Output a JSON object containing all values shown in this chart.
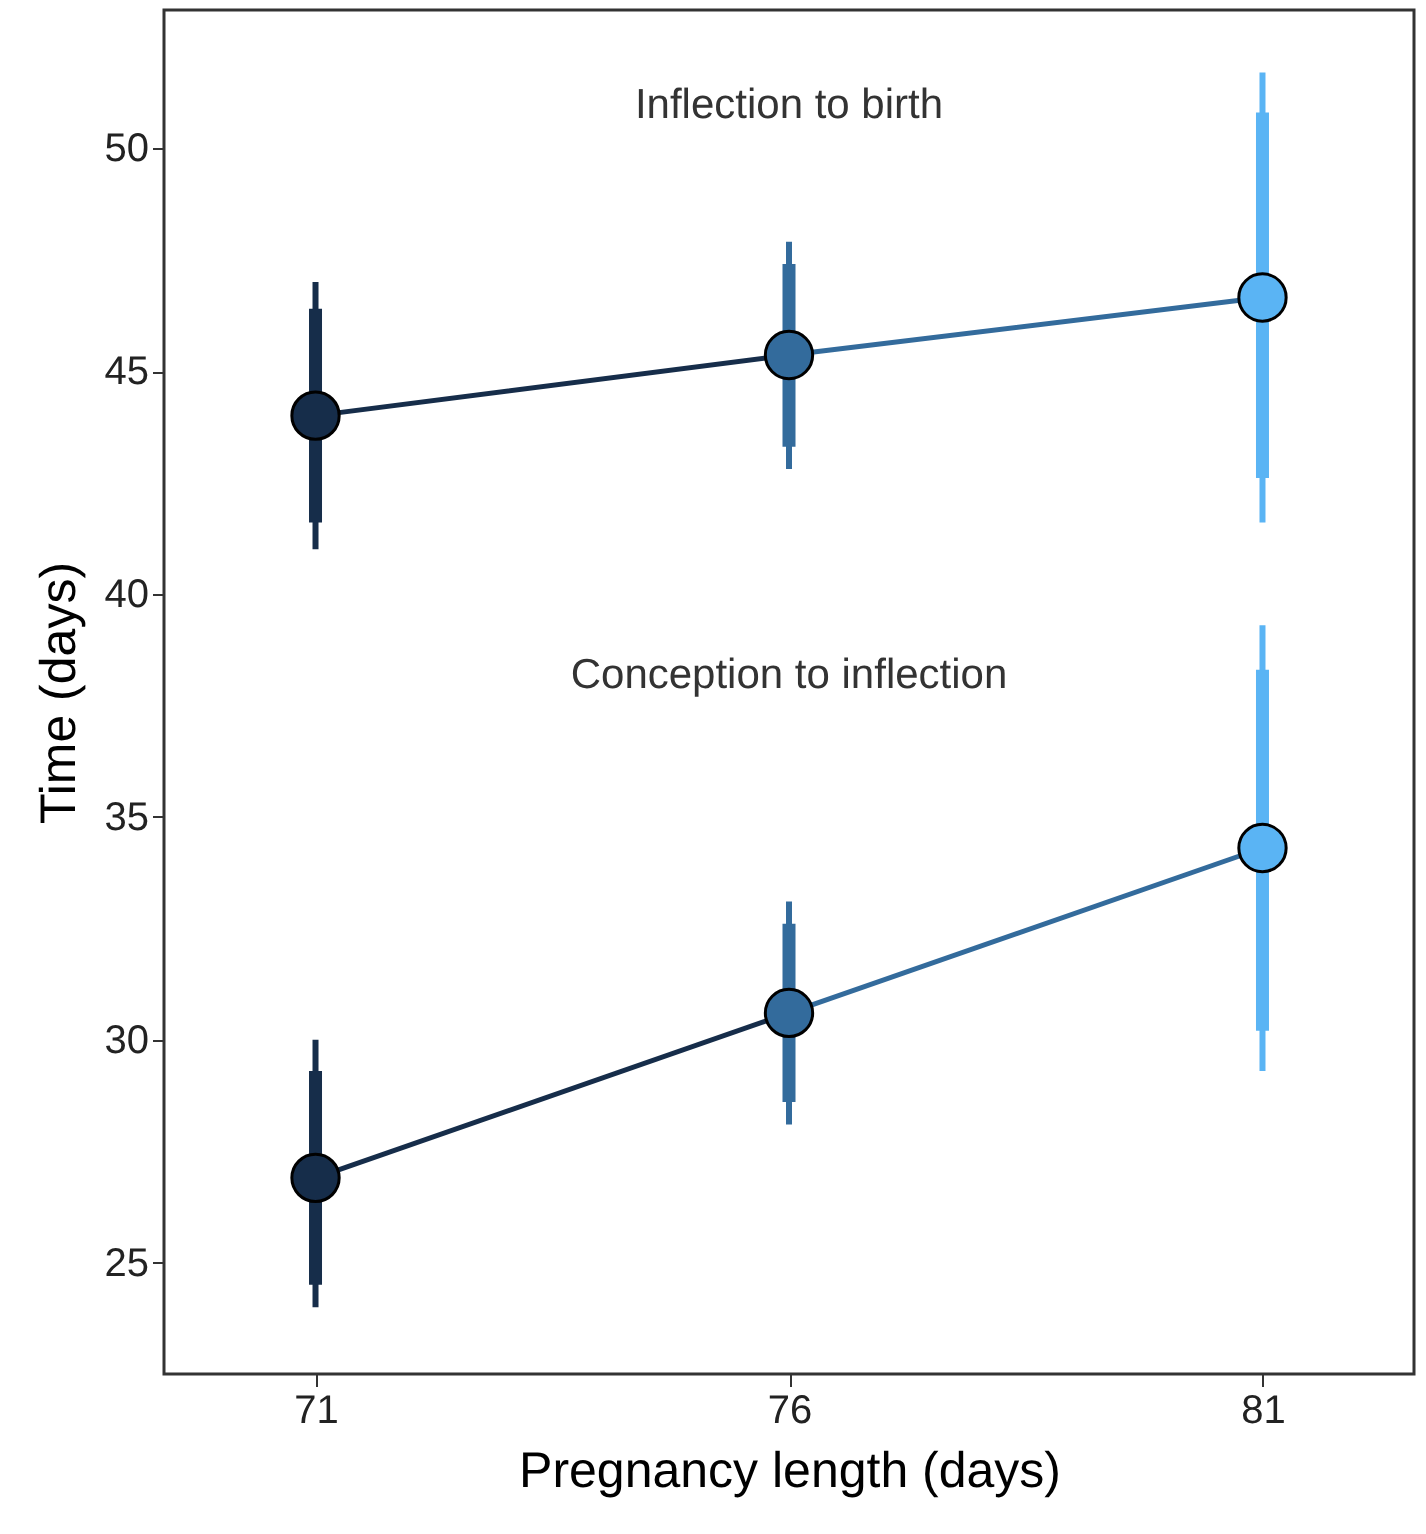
{
  "chart_data": {
    "type": "line",
    "xlabel": "Pregnancy length (days)",
    "ylabel": "Time (days)",
    "x": [
      71,
      76,
      81
    ],
    "xlim": [
      69.4,
      82.6
    ],
    "xticks": [
      71,
      76,
      81
    ],
    "ylim": [
      22.5,
      53.1
    ],
    "yticks": [
      25,
      30,
      35,
      40,
      45,
      50
    ],
    "grid": false,
    "series": [
      {
        "type": "bar",
        "colors": [
          "#162d4a",
          "#336b9c",
          "#5ab4f4"
        ],
        "base": [
          41.6,
          43.3,
          42.6
        ],
        "values": [
          4.8,
          4.1,
          8.2
        ]
      },
      {
        "marker": "circle",
        "colors": [
          "#162d4a",
          "#336b9c",
          "#5ab4f4"
        ],
        "values": [
          44.0,
          45.36,
          46.65
        ],
        "errors": [
          [
            41.0,
            47.0
          ],
          [
            42.8,
            47.9
          ],
          [
            41.6,
            51.7
          ]
        ]
      },
      {
        "type": "bar",
        "colors": [
          "#162d4a",
          "#336b9c",
          "#5ab4f4"
        ],
        "base": [
          24.5,
          28.6,
          30.2
        ],
        "values": [
          4.8,
          4.0,
          8.1
        ]
      },
      {
        "marker": "circle",
        "colors": [
          "#162d4a",
          "#336b9c",
          "#5ab4f4"
        ],
        "values": [
          26.9,
          30.6,
          34.3
        ],
        "errors": [
          [
            24.0,
            30.0
          ],
          [
            28.1,
            33.1
          ],
          [
            29.3,
            39.3
          ]
        ]
      }
    ],
    "annotations": [
      "Inflection to birth",
      "Conception to inflection"
    ]
  }
}
